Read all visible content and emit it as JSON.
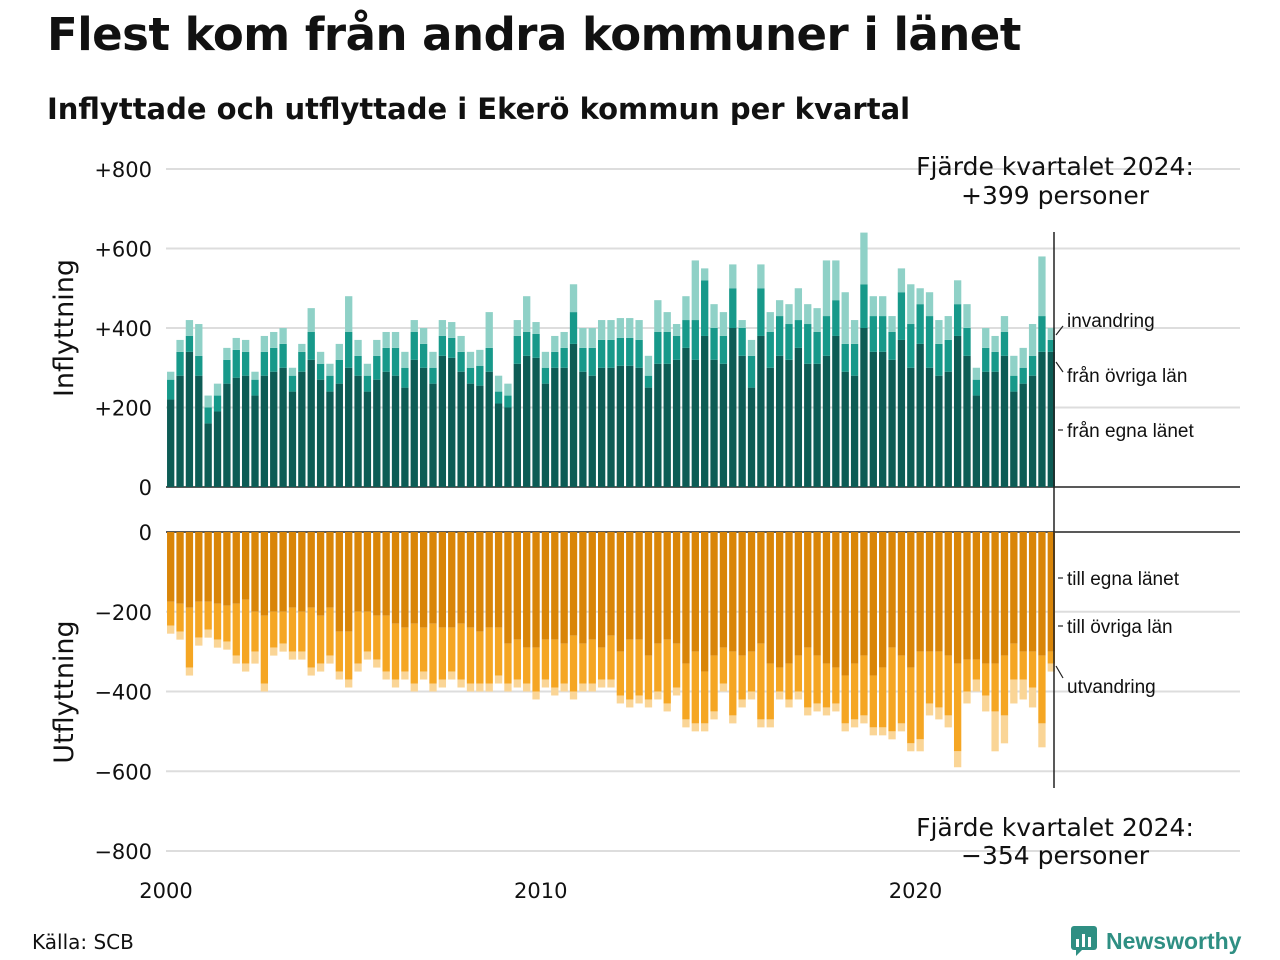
{
  "title": "Flest kom från andra kommuner i länet",
  "subtitle": "Inflyttade och utflyttade i Ekerö kommun per kvartal",
  "source": "Källa: SCB",
  "logo": {
    "text": "Newsworthy",
    "color": "#2f8f83"
  },
  "colors": {
    "in_egna": "#0d5c55",
    "in_ovriga": "#17998a",
    "in_invandring": "#8fd1c7",
    "ut_egna": "#d98508",
    "ut_ovriga": "#f5a623",
    "ut_utvandring": "#fad596",
    "grid": "#dddddd"
  },
  "annotations": {
    "top_line1": "Fjärde kvartalet 2024:",
    "top_line2": "+399 personer",
    "bottom_line1": "Fjärde kvartalet 2024:",
    "bottom_line2": "−354 personer"
  },
  "chart_data": [
    {
      "type": "bar",
      "stacked": true,
      "ylabel": "Inflyttning",
      "ylim": [
        0,
        800
      ],
      "yticks": [
        0,
        200,
        400,
        600,
        800
      ],
      "ytick_labels": [
        "0",
        "+200",
        "+400",
        "+600",
        "+800"
      ],
      "x_start_year": 2000,
      "xtick_labels": [
        "2000",
        "2010",
        "2020"
      ],
      "xtick_years": [
        2000,
        2010,
        2020
      ],
      "series": [
        {
          "name": "från egna länet",
          "values": [
            220,
            280,
            340,
            280,
            160,
            190,
            260,
            275,
            280,
            230,
            280,
            290,
            300,
            240,
            290,
            320,
            270,
            240,
            260,
            300,
            280,
            240,
            270,
            290,
            280,
            250,
            320,
            300,
            260,
            330,
            325,
            290,
            260,
            255,
            290,
            210,
            200,
            310,
            330,
            325,
            260,
            300,
            300,
            360,
            290,
            280,
            300,
            300,
            305,
            305,
            300,
            250,
            310,
            310,
            320,
            350,
            320,
            380,
            320,
            310,
            400,
            330,
            250,
            380,
            300,
            330,
            320,
            350,
            310,
            310,
            330,
            380,
            290,
            280,
            400,
            340,
            340,
            320,
            370,
            300,
            360,
            300,
            280,
            290,
            380,
            330,
            230,
            290,
            290,
            330,
            240,
            260,
            280,
            340,
            340
          ]
        },
        {
          "name": "från övriga län",
          "values": [
            50,
            60,
            40,
            50,
            40,
            40,
            60,
            70,
            60,
            40,
            60,
            60,
            60,
            40,
            50,
            70,
            40,
            40,
            60,
            90,
            50,
            40,
            60,
            60,
            70,
            50,
            70,
            60,
            40,
            50,
            50,
            50,
            40,
            50,
            60,
            30,
            30,
            70,
            60,
            60,
            40,
            40,
            50,
            80,
            60,
            70,
            70,
            70,
            70,
            70,
            70,
            30,
            80,
            80,
            60,
            70,
            100,
            140,
            80,
            70,
            100,
            70,
            80,
            120,
            90,
            100,
            90,
            70,
            100,
            80,
            100,
            90,
            70,
            80,
            110,
            90,
            90,
            70,
            120,
            110,
            100,
            130,
            80,
            80,
            80,
            70,
            40,
            60,
            50,
            60,
            40,
            40,
            50,
            90,
            30
          ]
        },
        {
          "name": "invandring",
          "values": [
            20,
            30,
            40,
            80,
            30,
            30,
            30,
            30,
            30,
            20,
            40,
            40,
            40,
            20,
            20,
            60,
            30,
            30,
            40,
            90,
            40,
            30,
            40,
            40,
            40,
            40,
            30,
            40,
            40,
            40,
            40,
            40,
            40,
            40,
            90,
            40,
            30,
            40,
            90,
            30,
            40,
            40,
            40,
            70,
            50,
            50,
            50,
            50,
            50,
            50,
            50,
            50,
            80,
            50,
            30,
            60,
            150,
            30,
            60,
            60,
            60,
            20,
            40,
            60,
            50,
            40,
            50,
            80,
            50,
            60,
            140,
            100,
            130,
            60,
            130,
            50,
            50,
            40,
            60,
            100,
            40,
            60,
            60,
            60,
            60,
            60,
            30,
            50,
            40,
            40,
            50,
            50,
            80,
            150,
            30
          ]
        }
      ],
      "segment_labels": [
        "invandring",
        "från övriga län",
        "från egna länet"
      ]
    },
    {
      "type": "bar",
      "stacked": true,
      "ylabel": "Utflyttning",
      "ylim": [
        -800,
        0
      ],
      "yticks": [
        0,
        -200,
        -400,
        -600,
        -800
      ],
      "ytick_labels": [
        "0",
        "−200",
        "−400",
        "−600",
        "−800"
      ],
      "series": [
        {
          "name": "till egna länet",
          "values": [
            -175,
            -180,
            -190,
            -175,
            -175,
            -180,
            -185,
            -180,
            -170,
            -200,
            -210,
            -200,
            -200,
            -190,
            -200,
            -190,
            -210,
            -190,
            -250,
            -250,
            -200,
            -200,
            -210,
            -210,
            -230,
            -240,
            -230,
            -240,
            -230,
            -240,
            -240,
            -230,
            -240,
            -250,
            -240,
            -240,
            -280,
            -270,
            -290,
            -290,
            -270,
            -270,
            -280,
            -260,
            -280,
            -270,
            -290,
            -260,
            -300,
            -270,
            -270,
            -310,
            -280,
            -270,
            -280,
            -330,
            -300,
            -350,
            -310,
            -290,
            -300,
            -310,
            -300,
            -280,
            -330,
            -340,
            -330,
            -310,
            -290,
            -310,
            -330,
            -340,
            -360,
            -330,
            -310,
            -360,
            -340,
            -290,
            -310,
            -340,
            -300,
            -300,
            -300,
            -310,
            -330,
            -320,
            -320,
            -330,
            -330,
            -310,
            -280,
            -300,
            -300,
            -310,
            -300
          ]
        },
        {
          "name": "till övriga län",
          "values": [
            -60,
            -70,
            -150,
            -90,
            -70,
            -90,
            -90,
            -130,
            -160,
            -100,
            -170,
            -90,
            -80,
            -110,
            -100,
            -150,
            -120,
            -120,
            -100,
            -120,
            -130,
            -100,
            -110,
            -140,
            -140,
            -110,
            -150,
            -110,
            -150,
            -130,
            -110,
            -140,
            -140,
            -130,
            -140,
            -120,
            -100,
            -100,
            -90,
            -110,
            -100,
            -120,
            -100,
            -140,
            -100,
            -110,
            -80,
            -110,
            -110,
            -150,
            -140,
            -110,
            -120,
            -160,
            -110,
            -140,
            -180,
            -130,
            -140,
            -90,
            -160,
            -110,
            -100,
            -190,
            -140,
            -60,
            -90,
            -90,
            -150,
            -120,
            -110,
            -90,
            -120,
            -140,
            -150,
            -130,
            -150,
            -210,
            -170,
            -190,
            -220,
            -130,
            -140,
            -150,
            -220,
            -80,
            -50,
            -80,
            -120,
            -150,
            -90,
            -70,
            -90,
            -170,
            -30
          ]
        },
        {
          "name": "utvandring",
          "values": [
            -20,
            -20,
            -20,
            -20,
            -20,
            -20,
            -20,
            -20,
            -20,
            -30,
            -20,
            -20,
            -20,
            -20,
            -20,
            -20,
            -20,
            -20,
            -20,
            -20,
            -20,
            -20,
            -20,
            -20,
            -20,
            -20,
            -20,
            -20,
            -20,
            -20,
            -20,
            -20,
            -20,
            -20,
            -20,
            -20,
            -20,
            -20,
            -20,
            -20,
            -20,
            -20,
            -20,
            -20,
            -20,
            -20,
            -20,
            -20,
            -20,
            -20,
            -20,
            -20,
            -20,
            -20,
            -20,
            -20,
            -20,
            -20,
            -20,
            -20,
            -20,
            -20,
            -20,
            -20,
            -20,
            -20,
            -20,
            -20,
            -20,
            -20,
            -20,
            -20,
            -20,
            -20,
            -20,
            -20,
            -20,
            -20,
            -20,
            -20,
            -30,
            -30,
            -30,
            -30,
            -40,
            -30,
            -30,
            -40,
            -100,
            -70,
            -60,
            -50,
            -50,
            -60,
            -20
          ]
        }
      ],
      "segment_labels": [
        "till egna länet",
        "till övriga län",
        "utvandring"
      ]
    }
  ]
}
